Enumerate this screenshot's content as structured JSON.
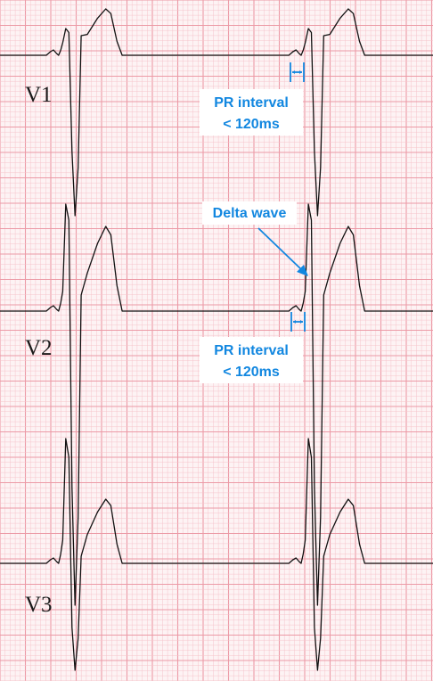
{
  "image": {
    "background": "#fdf3f4",
    "grid_minor_color": "#f6c4cb",
    "grid_major_color": "#ec9aa6",
    "trace_color": "#111111",
    "annotation_color": "#1287e0"
  },
  "leads": [
    {
      "name": "V1"
    },
    {
      "name": "V2"
    },
    {
      "name": "V3"
    }
  ],
  "annotations": {
    "pr_interval_1": {
      "line1": "PR interval",
      "line2": "< 120ms"
    },
    "delta_wave": {
      "label": "Delta wave"
    },
    "pr_interval_2": {
      "line1": "PR interval",
      "line2": "< 120ms"
    }
  }
}
